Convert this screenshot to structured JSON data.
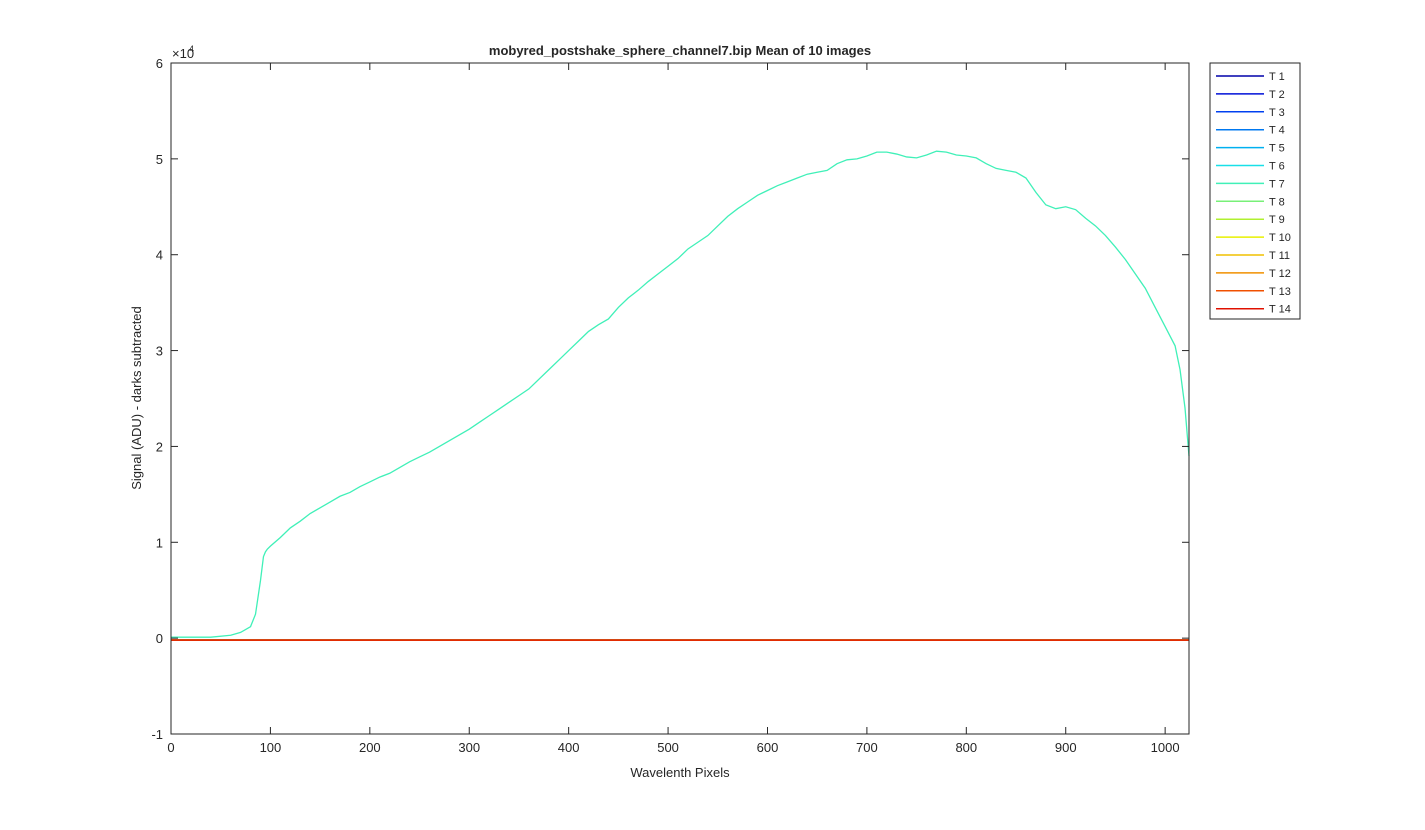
{
  "chart_data": {
    "type": "line",
    "title": "mobyred_postshake_sphere_channel7.bip  Mean of 10 images",
    "xlabel": "Wavelenth Pixels",
    "ylabel": "Signal (ADU) - darks subtracted",
    "y_exponent_label": "×10",
    "y_exponent_power": "4",
    "xlim": [
      0,
      1024
    ],
    "ylim": [
      -1,
      6
    ],
    "y_units_multiplier": 10000,
    "x_ticks": [
      "0",
      "100",
      "200",
      "300",
      "400",
      "500",
      "600",
      "700",
      "800",
      "900",
      "1000"
    ],
    "y_ticks": [
      "-1",
      "0",
      "1",
      "2",
      "3",
      "4",
      "5",
      "6"
    ],
    "grid": false,
    "legend_position": "outside-top-right",
    "series": [
      {
        "name": "T 1",
        "color": "#0000aa",
        "x": [
          0,
          1024
        ],
        "y": [
          -0.02,
          -0.02
        ]
      },
      {
        "name": "T 2",
        "color": "#0010d8",
        "x": [
          0,
          1024
        ],
        "y": [
          -0.02,
          -0.02
        ]
      },
      {
        "name": "T 3",
        "color": "#0040f0",
        "x": [
          0,
          1024
        ],
        "y": [
          -0.02,
          -0.02
        ]
      },
      {
        "name": "T 4",
        "color": "#0078f0",
        "x": [
          0,
          1024
        ],
        "y": [
          -0.02,
          -0.02
        ]
      },
      {
        "name": "T 5",
        "color": "#00b0f0",
        "x": [
          0,
          1024
        ],
        "y": [
          -0.02,
          -0.02
        ]
      },
      {
        "name": "T 6",
        "color": "#18e0e8",
        "x": [
          0,
          1024
        ],
        "y": [
          -0.02,
          -0.02
        ]
      },
      {
        "name": "T 7",
        "color": "#40f0b8",
        "x": [
          0,
          20,
          40,
          60,
          70,
          80,
          85,
          90,
          93,
          95,
          97,
          100,
          110,
          120,
          130,
          140,
          150,
          160,
          170,
          180,
          190,
          200,
          210,
          220,
          230,
          240,
          250,
          260,
          270,
          280,
          290,
          300,
          310,
          320,
          330,
          340,
          350,
          360,
          370,
          380,
          390,
          400,
          410,
          420,
          430,
          440,
          450,
          460,
          470,
          480,
          490,
          500,
          510,
          520,
          530,
          540,
          550,
          560,
          570,
          580,
          590,
          600,
          610,
          620,
          630,
          640,
          650,
          660,
          670,
          680,
          690,
          700,
          710,
          720,
          730,
          740,
          750,
          760,
          770,
          780,
          790,
          800,
          810,
          820,
          830,
          840,
          850,
          860,
          870,
          880,
          890,
          900,
          910,
          920,
          930,
          940,
          950,
          960,
          970,
          980,
          990,
          1000,
          1005,
          1010,
          1015,
          1020,
          1024
        ],
        "y": [
          0.01,
          0.01,
          0.01,
          0.03,
          0.06,
          0.12,
          0.25,
          0.6,
          0.85,
          0.9,
          0.93,
          0.96,
          1.05,
          1.15,
          1.22,
          1.3,
          1.36,
          1.42,
          1.48,
          1.52,
          1.58,
          1.63,
          1.68,
          1.72,
          1.78,
          1.84,
          1.89,
          1.94,
          2.0,
          2.06,
          2.12,
          2.18,
          2.25,
          2.32,
          2.39,
          2.46,
          2.53,
          2.6,
          2.7,
          2.8,
          2.9,
          3.0,
          3.1,
          3.2,
          3.27,
          3.33,
          3.45,
          3.55,
          3.63,
          3.72,
          3.8,
          3.88,
          3.96,
          4.06,
          4.13,
          4.2,
          4.3,
          4.4,
          4.48,
          4.55,
          4.62,
          4.67,
          4.72,
          4.76,
          4.8,
          4.84,
          4.86,
          4.88,
          4.95,
          4.99,
          5.0,
          5.03,
          5.07,
          5.07,
          5.05,
          5.02,
          5.01,
          5.04,
          5.08,
          5.07,
          5.04,
          5.03,
          5.01,
          4.95,
          4.9,
          4.88,
          4.86,
          4.8,
          4.65,
          4.52,
          4.48,
          4.5,
          4.47,
          4.38,
          4.3,
          4.2,
          4.08,
          3.95,
          3.8,
          3.65,
          3.45,
          3.25,
          3.15,
          3.05,
          2.8,
          2.4,
          1.9
        ]
      },
      {
        "name": "T 8",
        "color": "#78f078",
        "x": [
          0,
          1024
        ],
        "y": [
          -0.02,
          -0.02
        ]
      },
      {
        "name": "T 9",
        "color": "#b0f030",
        "x": [
          0,
          1024
        ],
        "y": [
          -0.02,
          -0.02
        ]
      },
      {
        "name": "T 10",
        "color": "#e8f000",
        "x": [
          0,
          1024
        ],
        "y": [
          -0.02,
          -0.02
        ]
      },
      {
        "name": "T 11",
        "color": "#f0c000",
        "x": [
          0,
          1024
        ],
        "y": [
          -0.02,
          -0.02
        ]
      },
      {
        "name": "T 12",
        "color": "#f09000",
        "x": [
          0,
          1024
        ],
        "y": [
          -0.02,
          -0.02
        ]
      },
      {
        "name": "T 13",
        "color": "#f05000",
        "x": [
          0,
          1024
        ],
        "y": [
          -0.02,
          -0.02
        ]
      },
      {
        "name": "T 14",
        "color": "#e01000",
        "x": [
          0,
          1024
        ],
        "y": [
          -0.02,
          -0.02
        ]
      }
    ]
  }
}
